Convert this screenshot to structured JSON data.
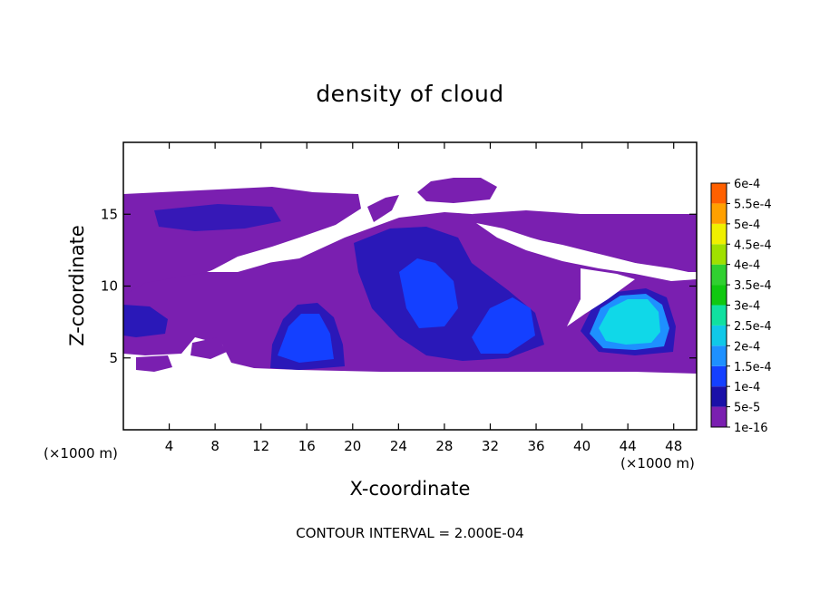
{
  "chart_data": {
    "type": "heatmap",
    "title": "density of cloud",
    "xlabel": "X-coordinate",
    "ylabel": "Z-coordinate",
    "x_unit": "(×1000 m)",
    "z_unit": "(×1000 m)",
    "xlim": [
      0,
      50
    ],
    "ylim": [
      0,
      20
    ],
    "x_ticks": [
      4,
      8,
      12,
      16,
      20,
      24,
      28,
      32,
      36,
      40,
      44,
      48
    ],
    "y_ticks": [
      5,
      10,
      15
    ],
    "contour_interval_text": "CONTOUR INTERVAL = 2.000E-04",
    "colorbar": {
      "labels": [
        "6e-4",
        "5.5e-4",
        "5e-4",
        "4.5e-4",
        "4e-4",
        "3.5e-4",
        "3e-4",
        "2.5e-4",
        "2e-4",
        "1.5e-4",
        "1e-4",
        "5e-5",
        "1e-16"
      ],
      "colors": [
        "#ffffff",
        "#7a1fb0",
        "#1a10a8",
        "#1440ff",
        "#1e90ff",
        "#10c8e8",
        "#10e0a0",
        "#10c810",
        "#30d030",
        "#a0e000",
        "#f0f000",
        "#ffa000",
        "#ff6000",
        "#ff2000",
        "#ff7070",
        "#ffaaaa"
      ]
    },
    "regions": [
      {
        "name": "upper-cloud-layer-left",
        "level": "1e-16",
        "x_range": [
          0,
          20
        ],
        "z_range": [
          12,
          16.5
        ]
      },
      {
        "name": "central-cloud-mass",
        "level": "1e-16",
        "x_range": [
          13,
          50
        ],
        "z_range": [
          4,
          15
        ]
      },
      {
        "name": "anvil-top",
        "level": "1e-16",
        "x_range": [
          25,
          33
        ],
        "z_range": [
          15.5,
          17
        ]
      },
      {
        "name": "core-15-7",
        "level": "1e-4",
        "x_range": [
          13,
          18
        ],
        "z_range": [
          4.5,
          8.5
        ]
      },
      {
        "name": "core-26-10",
        "level": "1e-4",
        "x_range": [
          21,
          36
        ],
        "z_range": [
          5,
          13
        ]
      },
      {
        "name": "core-44-7",
        "level": "2e-4",
        "x_range": [
          40,
          47
        ],
        "z_range": [
          5.5,
          9.5
        ]
      },
      {
        "name": "core-left-edge",
        "level": "5e-5",
        "x_range": [
          0,
          3
        ],
        "z_range": [
          6.5,
          8.5
        ]
      }
    ]
  }
}
